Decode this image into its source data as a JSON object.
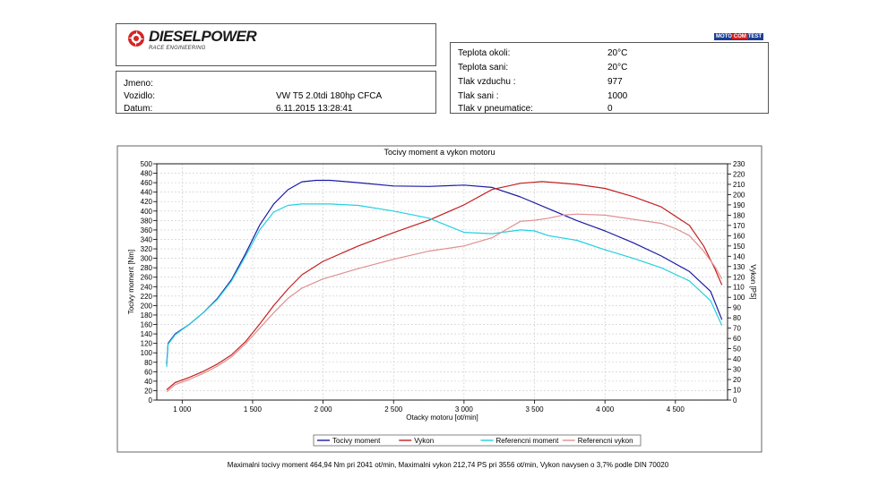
{
  "header": {
    "logo_text": "DIESELPOWER",
    "logo_subtext": "RACE ENGINEERING",
    "badge_left": "MOTO",
    "badge_mid": "COM",
    "badge_right": "TEST"
  },
  "vehicle": {
    "jmeno_label": "Jmeno:",
    "jmeno_value": "",
    "vozidlo_label": "Vozidlo:",
    "vozidlo_value": "VW T5 2.0tdi 180hp CFCA",
    "datum_label": "Datum:",
    "datum_value": "6.11.2015 13:28:41"
  },
  "conditions": [
    {
      "label": "Teplota okoli:",
      "value": "20°C"
    },
    {
      "label": "Teplota sani:",
      "value": "20°C"
    },
    {
      "label": "Tlak vzduchu :",
      "value": "977"
    },
    {
      "label": "Tlak sani :",
      "value": "1000"
    },
    {
      "label": "Tlak v pneumatice:",
      "value": "0"
    }
  ],
  "footer_text": "Maximalni tocivy moment 464,94 Nm pri 2041 ot/min,  Maximalni vykon 212,74 PS pri 3556 ot/min,  Vykon navysen o 3,7% podle DIN 70020",
  "chart_data": {
    "type": "line",
    "title": "Tocivy moment a vykon motoru",
    "xlabel": "Otacky motoru [ot/min]",
    "ylabel": "Tocivy moment [Nm]",
    "y2label": "Vykon [PS]",
    "xlim": [
      820,
      4870
    ],
    "ylim": [
      0,
      500
    ],
    "y2lim": [
      0,
      230
    ],
    "x_ticks": [
      1000,
      1500,
      2000,
      2500,
      3000,
      3500,
      4000,
      4500
    ],
    "x_tick_labels": [
      "1 000",
      "1 500",
      "2 000",
      "2 500",
      "3 000",
      "3 500",
      "4 000",
      "4 500"
    ],
    "y_ticks": [
      0,
      20,
      40,
      60,
      80,
      100,
      120,
      140,
      160,
      180,
      200,
      220,
      240,
      260,
      280,
      300,
      320,
      340,
      360,
      380,
      400,
      420,
      440,
      460,
      480,
      500
    ],
    "y2_ticks": [
      0,
      10,
      20,
      30,
      40,
      50,
      60,
      70,
      80,
      90,
      100,
      110,
      120,
      130,
      140,
      150,
      160,
      170,
      180,
      190,
      200,
      210,
      220,
      230
    ],
    "grid": true,
    "legend_position": "bottom",
    "colors": {
      "tocivy_moment": "#1a1aa6",
      "vykon": "#c42020",
      "referencni_moment": "#22d0e0",
      "referencni_vykon": "#e09090"
    },
    "series": [
      {
        "name": "Tocivy moment",
        "axis": "left",
        "color_key": "tocivy_moment",
        "x": [
          890,
          900,
          950,
          1050,
          1150,
          1250,
          1350,
          1450,
          1550,
          1650,
          1750,
          1850,
          1950,
          2050,
          2250,
          2500,
          2750,
          3000,
          3200,
          3400,
          3600,
          3800,
          4000,
          4200,
          4400,
          4600,
          4750,
          4830
        ],
        "y": [
          75,
          120,
          140,
          160,
          185,
          215,
          255,
          310,
          370,
          415,
          445,
          462,
          465,
          465,
          460,
          453,
          452,
          455,
          450,
          430,
          405,
          380,
          358,
          333,
          305,
          272,
          230,
          170
        ]
      },
      {
        "name": "Vykon",
        "axis": "right",
        "color_key": "vykon",
        "x": [
          890,
          950,
          1050,
          1150,
          1250,
          1350,
          1450,
          1550,
          1650,
          1750,
          1850,
          2000,
          2250,
          2500,
          2750,
          3000,
          3200,
          3400,
          3556,
          3800,
          4000,
          4200,
          4400,
          4600,
          4700,
          4780,
          4830
        ],
        "y": [
          10,
          17,
          22,
          28,
          35,
          44,
          57,
          74,
          92,
          108,
          122,
          135,
          150,
          163,
          175,
          190,
          205,
          211,
          212.7,
          210,
          206,
          198,
          188,
          170,
          150,
          128,
          112
        ]
      },
      {
        "name": "Referencni moment",
        "axis": "left",
        "color_key": "referencni_moment",
        "x": [
          890,
          900,
          950,
          1050,
          1150,
          1250,
          1350,
          1450,
          1550,
          1650,
          1750,
          1850,
          1950,
          2050,
          2250,
          2500,
          2750,
          3000,
          3200,
          3400,
          3500,
          3600,
          3800,
          4000,
          4200,
          4400,
          4600,
          4750,
          4830
        ],
        "y": [
          70,
          118,
          138,
          160,
          185,
          213,
          252,
          305,
          360,
          398,
          412,
          415,
          415,
          415,
          412,
          400,
          385,
          355,
          352,
          360,
          358,
          348,
          338,
          318,
          300,
          280,
          252,
          210,
          158
        ]
      },
      {
        "name": "Referencni vykon",
        "axis": "right",
        "color_key": "referencni_vykon",
        "x": [
          890,
          950,
          1050,
          1150,
          1250,
          1350,
          1450,
          1550,
          1650,
          1750,
          1850,
          2000,
          2250,
          2500,
          2750,
          3000,
          3200,
          3400,
          3500,
          3600,
          3700,
          3800,
          4000,
          4200,
          4400,
          4500,
          4600,
          4700,
          4780,
          4830
        ],
        "y": [
          8,
          15,
          20,
          26,
          33,
          42,
          55,
          70,
          85,
          99,
          109,
          118,
          128,
          137,
          145,
          150,
          158,
          174,
          175,
          177,
          180,
          181,
          180,
          176,
          172,
          167,
          160,
          145,
          130,
          118
        ]
      }
    ]
  }
}
